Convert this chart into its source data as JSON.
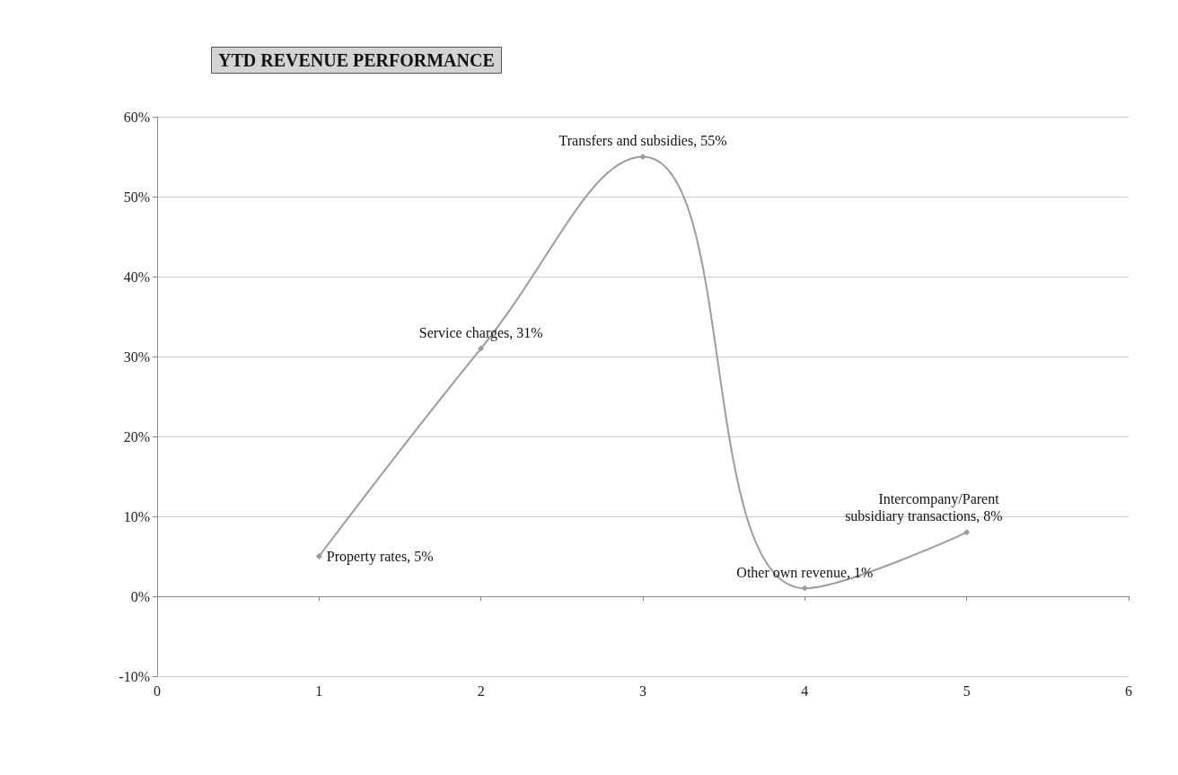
{
  "chart_data": {
    "type": "line",
    "title": "YTD REVENUE PERFORMANCE",
    "x": [
      1,
      2,
      3,
      4,
      5
    ],
    "series": [
      {
        "color": "#a09a9c",
        "values": [
          5,
          31,
          55,
          1,
          8
        ],
        "value_labels": [
          "Property rates, 5%",
          "Service charges, 31%",
          "Transfers and subsidies, 55%",
          "Other own revenue, 1%",
          "Intercompany/Parent subsidiary transactions, 8%"
        ]
      }
    ],
    "xlim": [
      0,
      6
    ],
    "xticks": [
      0,
      1,
      2,
      3,
      4,
      5,
      6
    ],
    "ylim": [
      -10,
      60
    ],
    "yticks": [
      {
        "value": -10,
        "label": "-10%"
      },
      {
        "value": 0,
        "label": "0%"
      },
      {
        "value": 10,
        "label": "10%"
      },
      {
        "value": 20,
        "label": "20%"
      },
      {
        "value": 30,
        "label": "30%"
      },
      {
        "value": 40,
        "label": "40%"
      },
      {
        "value": 50,
        "label": "50%"
      },
      {
        "value": 60,
        "label": "60%"
      }
    ],
    "grid": "y",
    "marker": "diamond",
    "line_style": "solid"
  }
}
